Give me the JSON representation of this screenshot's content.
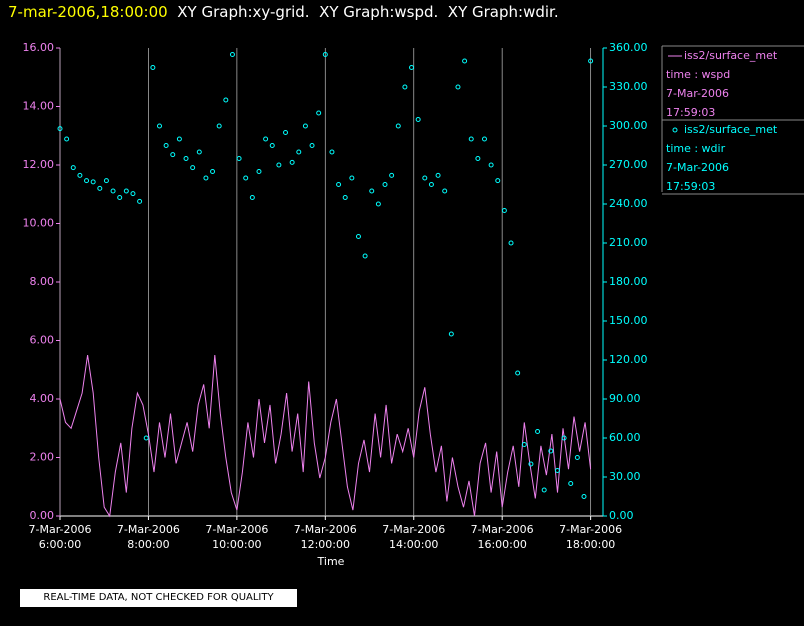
{
  "chart_data": {
    "type": "line_scatter",
    "timestamp": "7-mar-2006,18:00:00",
    "title": "XY Graph:xy-grid.  XY Graph:wspd.  XY Graph:wdir.",
    "xlabel": "Time",
    "footer": "REAL-TIME DATA, NOT CHECKED FOR QUALITY",
    "xlim": [
      6,
      18.28
    ],
    "xticks": [
      {
        "value": 6,
        "label": "7-Mar-2006 6:00:00"
      },
      {
        "value": 8,
        "label": "7-Mar-2006 8:00:00"
      },
      {
        "value": 10,
        "label": "7-Mar-2006 10:00:00"
      },
      {
        "value": 12,
        "label": "7-Mar-2006 12:00:00"
      },
      {
        "value": 14,
        "label": "7-Mar-2006 14:00:00"
      },
      {
        "value": 16,
        "label": "7-Mar-2006 16:00:00"
      },
      {
        "value": 18,
        "label": "7-Mar-2006 18:00:00"
      }
    ],
    "grid": "x",
    "ylim": [
      0,
      16
    ],
    "yticks": [
      {
        "value": 0,
        "label": "0.00"
      },
      {
        "value": 2,
        "label": "2.00"
      },
      {
        "value": 4,
        "label": "4.00"
      },
      {
        "value": 6,
        "label": "6.00"
      },
      {
        "value": 8,
        "label": "8.00"
      },
      {
        "value": 10,
        "label": "10.00"
      },
      {
        "value": 12,
        "label": "12.00"
      },
      {
        "value": 14,
        "label": "14.00"
      },
      {
        "value": 16,
        "label": "16.00"
      }
    ],
    "y2lim": [
      0,
      360
    ],
    "y2ticks": [
      {
        "value": 0,
        "label": "0.00"
      },
      {
        "value": 30,
        "label": "30.00"
      },
      {
        "value": 60,
        "label": "60.00"
      },
      {
        "value": 90,
        "label": "90.00"
      },
      {
        "value": 120,
        "label": "120.00"
      },
      {
        "value": 150,
        "label": "150.00"
      },
      {
        "value": 180,
        "label": "180.00"
      },
      {
        "value": 210,
        "label": "210.00"
      },
      {
        "value": 240,
        "label": "240.00"
      },
      {
        "value": 270,
        "label": "270.00"
      },
      {
        "value": 300,
        "label": "300.00"
      },
      {
        "value": 330,
        "label": "330.00"
      },
      {
        "value": 360,
        "label": "360.00"
      }
    ],
    "series": [
      {
        "name": "iss2/surface_met",
        "legend_text": [
          "time : wspd",
          "7-Mar-2006",
          "17:59:03"
        ],
        "kind": "line",
        "axis": "y",
        "color": "#ee82ee",
        "x": [
          6,
          6.125,
          6.25,
          6.375,
          6.5,
          6.625,
          6.75,
          6.875,
          7,
          7.125,
          7.25,
          7.375,
          7.5,
          7.625,
          7.75,
          7.875,
          8,
          8.125,
          8.25,
          8.375,
          8.5,
          8.625,
          8.75,
          8.875,
          9,
          9.125,
          9.25,
          9.375,
          9.5,
          9.625,
          9.75,
          9.875,
          10,
          10.125,
          10.25,
          10.375,
          10.5,
          10.625,
          10.75,
          10.875,
          11,
          11.125,
          11.25,
          11.375,
          11.5,
          11.625,
          11.75,
          11.875,
          12,
          12.125,
          12.25,
          12.375,
          12.5,
          12.625,
          12.75,
          12.875,
          13,
          13.125,
          13.25,
          13.375,
          13.5,
          13.625,
          13.75,
          13.875,
          14,
          14.125,
          14.25,
          14.375,
          14.5,
          14.625,
          14.75,
          14.875,
          15,
          15.125,
          15.25,
          15.375,
          15.5,
          15.625,
          15.75,
          15.875,
          16,
          16.125,
          16.25,
          16.375,
          16.5,
          16.625,
          16.75,
          16.875,
          17,
          17.125,
          17.25,
          17.375,
          17.5,
          17.625,
          17.75,
          17.875,
          18
        ],
        "values": [
          4.0,
          3.2,
          3.0,
          3.6,
          4.2,
          5.5,
          4.2,
          2.0,
          0.3,
          0.0,
          1.5,
          2.5,
          0.8,
          3.0,
          4.2,
          3.8,
          2.8,
          1.5,
          3.2,
          2.0,
          3.5,
          1.8,
          2.5,
          3.2,
          2.2,
          3.8,
          4.5,
          3.0,
          5.5,
          3.5,
          2.0,
          0.8,
          0.2,
          1.5,
          3.2,
          2.0,
          4.0,
          2.5,
          3.8,
          1.8,
          2.8,
          4.2,
          2.2,
          3.5,
          1.5,
          4.6,
          2.5,
          1.3,
          2.0,
          3.2,
          4.0,
          2.5,
          1.0,
          0.2,
          1.8,
          2.6,
          1.5,
          3.5,
          2.0,
          3.8,
          1.8,
          2.8,
          2.2,
          3.0,
          2.0,
          3.6,
          4.4,
          2.8,
          1.5,
          2.4,
          0.5,
          2.0,
          1.0,
          0.3,
          1.2,
          0.0,
          1.8,
          2.5,
          0.8,
          2.2,
          0.3,
          1.5,
          2.4,
          1.0,
          3.2,
          1.8,
          0.6,
          2.4,
          1.4,
          2.8,
          0.8,
          3.0,
          1.6,
          3.4,
          2.2,
          3.2,
          1.6
        ]
      },
      {
        "name": "iss2/surface_met",
        "legend_text": [
          "time : wdir",
          "7-Mar-2006",
          "17:59:03"
        ],
        "kind": "scatter",
        "axis": "y2",
        "color": "#00ffff",
        "x": [
          6,
          6.15,
          6.3,
          6.45,
          6.6,
          6.75,
          6.9,
          7.05,
          7.2,
          7.35,
          7.5,
          7.65,
          7.8,
          7.95,
          8.1,
          8.25,
          8.4,
          8.55,
          8.7,
          8.85,
          9,
          9.15,
          9.3,
          9.45,
          9.6,
          9.75,
          9.9,
          10.05,
          10.2,
          10.35,
          10.5,
          10.65,
          10.8,
          10.95,
          11.1,
          11.25,
          11.4,
          11.55,
          11.7,
          11.85,
          12,
          12.15,
          12.3,
          12.45,
          12.6,
          12.75,
          12.9,
          13.05,
          13.2,
          13.35,
          13.5,
          13.65,
          13.8,
          13.95,
          14.1,
          14.25,
          14.4,
          14.55,
          14.7,
          14.85,
          15,
          15.15,
          15.3,
          15.45,
          15.6,
          15.75,
          15.9,
          16.05,
          16.2,
          16.35,
          16.5,
          16.65,
          16.8,
          16.95,
          17.1,
          17.25,
          17.4,
          17.55,
          17.7,
          17.85,
          18
        ],
        "values": [
          298,
          290,
          268,
          262,
          258,
          257,
          252,
          258,
          250,
          245,
          250,
          248,
          242,
          60,
          345,
          300,
          285,
          278,
          290,
          275,
          268,
          280,
          260,
          265,
          300,
          320,
          355,
          275,
          260,
          245,
          265,
          290,
          285,
          270,
          295,
          272,
          280,
          300,
          285,
          310,
          355,
          280,
          255,
          245,
          260,
          215,
          200,
          250,
          240,
          255,
          262,
          300,
          330,
          345,
          305,
          260,
          255,
          262,
          250,
          140,
          330,
          350,
          290,
          275,
          290,
          270,
          258,
          235,
          210,
          110,
          55,
          40,
          65,
          20,
          50,
          35,
          60,
          25,
          45,
          15,
          350
        ]
      }
    ]
  }
}
